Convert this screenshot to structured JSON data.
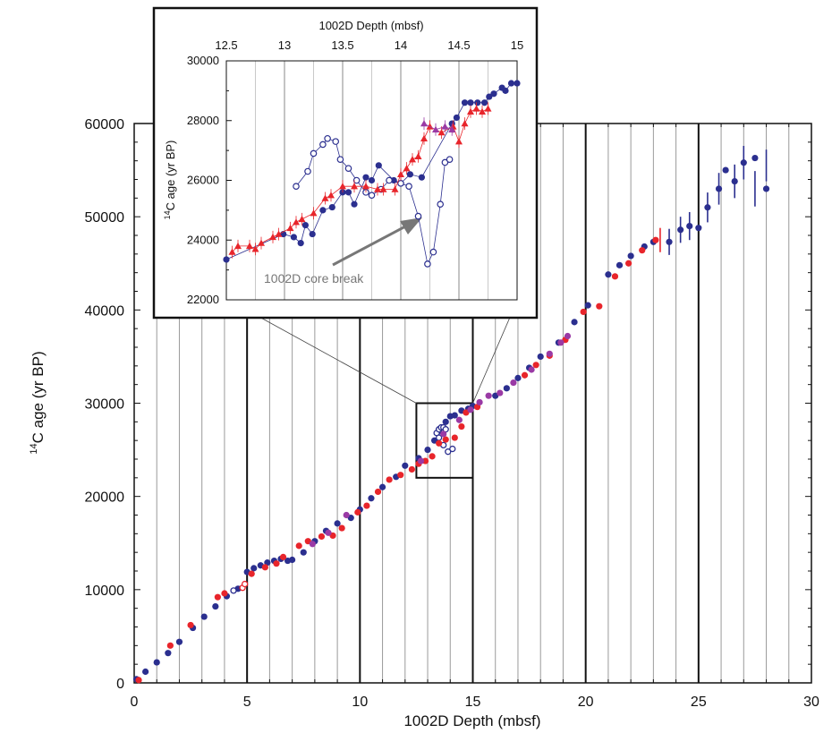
{
  "chart_data": [
    {
      "type": "scatter",
      "panel": "main",
      "xlabel": "1002D Depth  (mbsf)",
      "ylabel_sup": "14",
      "ylabel_rest": "C age (yr BP)",
      "xlim": [
        0,
        30
      ],
      "ylim": [
        0,
        60000
      ],
      "xticks": [
        "0",
        "5",
        "10",
        "15",
        "20",
        "25",
        "30"
      ],
      "yticks": [
        "0",
        "10000",
        "20000",
        "30000",
        "40000",
        "50000",
        "60000"
      ],
      "grid": "vertical lines every 1 mbsf (gray), every 5 mbsf (black)",
      "colors": {
        "blue": "#2b2f8f",
        "red": "#e8252b",
        "purple": "#9a3aa5"
      },
      "series": [
        {
          "color": "blue",
          "marker": "filled-circle",
          "x": [
            0.1,
            0.5,
            1.0,
            1.5,
            2.0,
            2.6,
            3.1,
            3.6,
            4.1,
            4.6,
            5.0,
            5.3,
            5.6,
            5.9,
            6.2,
            6.5,
            6.8,
            7.0,
            7.5,
            8.0,
            8.5,
            9.0,
            9.6,
            10.0,
            10.5,
            11.0,
            11.6,
            12.0,
            12.6,
            13.0,
            13.3,
            13.5,
            13.8,
            14.0,
            14.2,
            14.5,
            14.8,
            15.0,
            16.0,
            16.5,
            17.0,
            17.5,
            18.0,
            18.8,
            19.5,
            20.1,
            21.0,
            21.5,
            22.0,
            22.6,
            23.0,
            23.7,
            24.2,
            24.6,
            25.0,
            25.4,
            25.9,
            26.2,
            26.6,
            27.0,
            27.5,
            28.0
          ],
          "y": [
            400,
            1200,
            2200,
            3200,
            4400,
            5900,
            7100,
            8200,
            9300,
            10100,
            11900,
            12300,
            12600,
            12900,
            13100,
            13300,
            13100,
            13200,
            14000,
            15200,
            16300,
            17100,
            17700,
            18600,
            19800,
            21000,
            22100,
            23300,
            24100,
            25000,
            26000,
            27000,
            28000,
            28600,
            28700,
            29200,
            29400,
            29700,
            30800,
            31600,
            32700,
            33800,
            35000,
            36500,
            38700,
            40500,
            43800,
            44800,
            45800,
            46800,
            47300,
            47300,
            48600,
            49000,
            48800,
            51000,
            53000,
            55000,
            53800,
            55800,
            56300,
            53000
          ]
        },
        {
          "color": "blue",
          "marker": "error-bar",
          "x": [
            23.7,
            24.2,
            24.6,
            25.4,
            25.9,
            26.6,
            27.0,
            27.5,
            28.0
          ],
          "y": [
            47300,
            48600,
            49000,
            51000,
            53000,
            53800,
            55800,
            53000,
            55500
          ],
          "err": [
            1400,
            1400,
            1500,
            1600,
            1700,
            1800,
            1800,
            1900,
            1700
          ]
        },
        {
          "color": "blue",
          "marker": "open-circle",
          "x": [
            4.4,
            13.4,
            13.5,
            13.6,
            13.7,
            13.8,
            13.5,
            13.7,
            13.9,
            14.1
          ],
          "y": [
            9900,
            26800,
            27200,
            27400,
            27400,
            27200,
            26300,
            25500,
            24800,
            25100
          ]
        },
        {
          "color": "red",
          "marker": "filled-circle",
          "x": [
            0.2,
            1.6,
            2.5,
            3.7,
            4.0,
            5.2,
            5.8,
            6.3,
            6.6,
            7.3,
            7.7,
            8.3,
            8.8,
            9.2,
            9.9,
            10.3,
            10.8,
            11.3,
            11.8,
            12.3,
            12.6,
            12.9,
            13.2,
            13.5,
            13.8,
            14.2,
            14.5,
            14.7,
            15.2,
            17.3,
            17.8,
            18.4,
            19.1,
            19.9,
            20.6,
            21.3,
            21.9,
            22.5,
            23.1
          ],
          "y": [
            300,
            4000,
            6200,
            9200,
            9600,
            11700,
            12400,
            12800,
            13500,
            14700,
            15200,
            15700,
            15800,
            16600,
            18300,
            19000,
            20500,
            21800,
            22300,
            22900,
            23500,
            23800,
            24300,
            25700,
            26100,
            26300,
            27500,
            29000,
            29600,
            33000,
            34100,
            35100,
            36800,
            39800,
            40400,
            43600,
            45000,
            46400,
            47500
          ]
        },
        {
          "color": "red",
          "marker": "error-bar",
          "x": [
            23.3
          ],
          "y": [
            47500
          ],
          "err": [
            1300
          ]
        },
        {
          "color": "red",
          "marker": "open-circle",
          "x": [
            4.8,
            4.9
          ],
          "y": [
            10200,
            10600
          ]
        },
        {
          "color": "purple",
          "marker": "filled-circle",
          "x": [
            7.9,
            8.6,
            9.4,
            12.7,
            13.7,
            14.4,
            14.9,
            15.3,
            15.7,
            16.2,
            16.8,
            17.6,
            18.4,
            18.9,
            19.2
          ],
          "y": [
            14900,
            16100,
            18000,
            23800,
            26700,
            28200,
            29300,
            30100,
            30800,
            31100,
            32200,
            33600,
            35300,
            36500,
            37200
          ]
        }
      ],
      "zoom_box": {
        "xlim": [
          12.5,
          15
        ],
        "ylim": [
          22000,
          30000
        ]
      }
    },
    {
      "type": "scatter",
      "panel": "inset",
      "xlabel": "1002D Depth (mbsf)",
      "ylabel_sup": "14",
      "ylabel_rest": "C age (yr BP)",
      "xlim": [
        12.5,
        15
      ],
      "ylim": [
        22000,
        30000
      ],
      "xticks": [
        "12.5",
        "13",
        "13.5",
        "14",
        "14.5",
        "15"
      ],
      "yticks": [
        "22000",
        "24000",
        "26000",
        "28000",
        "30000"
      ],
      "annotation": "1002D core break",
      "series": [
        {
          "color": "blue",
          "marker": "filled-circle-line",
          "x": [
            12.5,
            12.99,
            13.08,
            13.14,
            13.18,
            13.24,
            13.33,
            13.41,
            13.5,
            13.55,
            13.6,
            13.7,
            13.75,
            13.81,
            13.94,
            14.0,
            14.08,
            14.18,
            14.44,
            14.48,
            14.55,
            14.6,
            14.66,
            14.72,
            14.76,
            14.8,
            14.87,
            14.9,
            14.95,
            15.0
          ],
          "y": [
            23350,
            24200,
            24100,
            23900,
            24500,
            24200,
            25000,
            25100,
            25600,
            25600,
            25200,
            26100,
            26000,
            26500,
            26000,
            25900,
            26200,
            26100,
            27900,
            28100,
            28600,
            28600,
            28600,
            28600,
            28800,
            28900,
            29100,
            29000,
            29250,
            29250
          ]
        },
        {
          "color": "blue",
          "marker": "open-circle-line",
          "x": [
            13.1,
            13.2,
            13.25,
            13.33,
            13.37,
            13.44,
            13.48,
            13.55,
            13.62,
            13.7,
            13.75,
            13.83,
            13.9,
            14.0,
            14.07,
            14.15,
            14.23,
            14.28,
            14.34,
            14.38,
            14.42
          ],
          "y": [
            25800,
            26300,
            26900,
            27200,
            27400,
            27300,
            26700,
            26400,
            26000,
            25600,
            25500,
            25700,
            26000,
            25900,
            25800,
            24800,
            23200,
            23600,
            25200,
            26600,
            26700
          ]
        },
        {
          "color": "red",
          "marker": "filled-triangle-line",
          "x": [
            12.55,
            12.6,
            12.7,
            12.75,
            12.8,
            12.9,
            12.95,
            13.05,
            13.1,
            13.15,
            13.25,
            13.35,
            13.4,
            13.5,
            13.6,
            13.7,
            13.8,
            13.85,
            13.95,
            14.0,
            14.05,
            14.1,
            14.15,
            14.2,
            14.25,
            14.35,
            14.45,
            14.5,
            14.55,
            14.6,
            14.65,
            14.7,
            14.75
          ],
          "y": [
            23600,
            23800,
            23800,
            23700,
            23900,
            24100,
            24200,
            24400,
            24600,
            24700,
            24900,
            25400,
            25500,
            25800,
            25800,
            25800,
            25700,
            25700,
            25700,
            26200,
            26400,
            26700,
            26800,
            27400,
            27800,
            27600,
            27800,
            27300,
            27900,
            28300,
            28400,
            28300,
            28400
          ]
        },
        {
          "color": "purple",
          "marker": "filled-triangle-line",
          "x": [
            14.2,
            14.3,
            14.38,
            14.44
          ],
          "y": [
            27900,
            27700,
            27800,
            27700
          ]
        }
      ]
    }
  ]
}
